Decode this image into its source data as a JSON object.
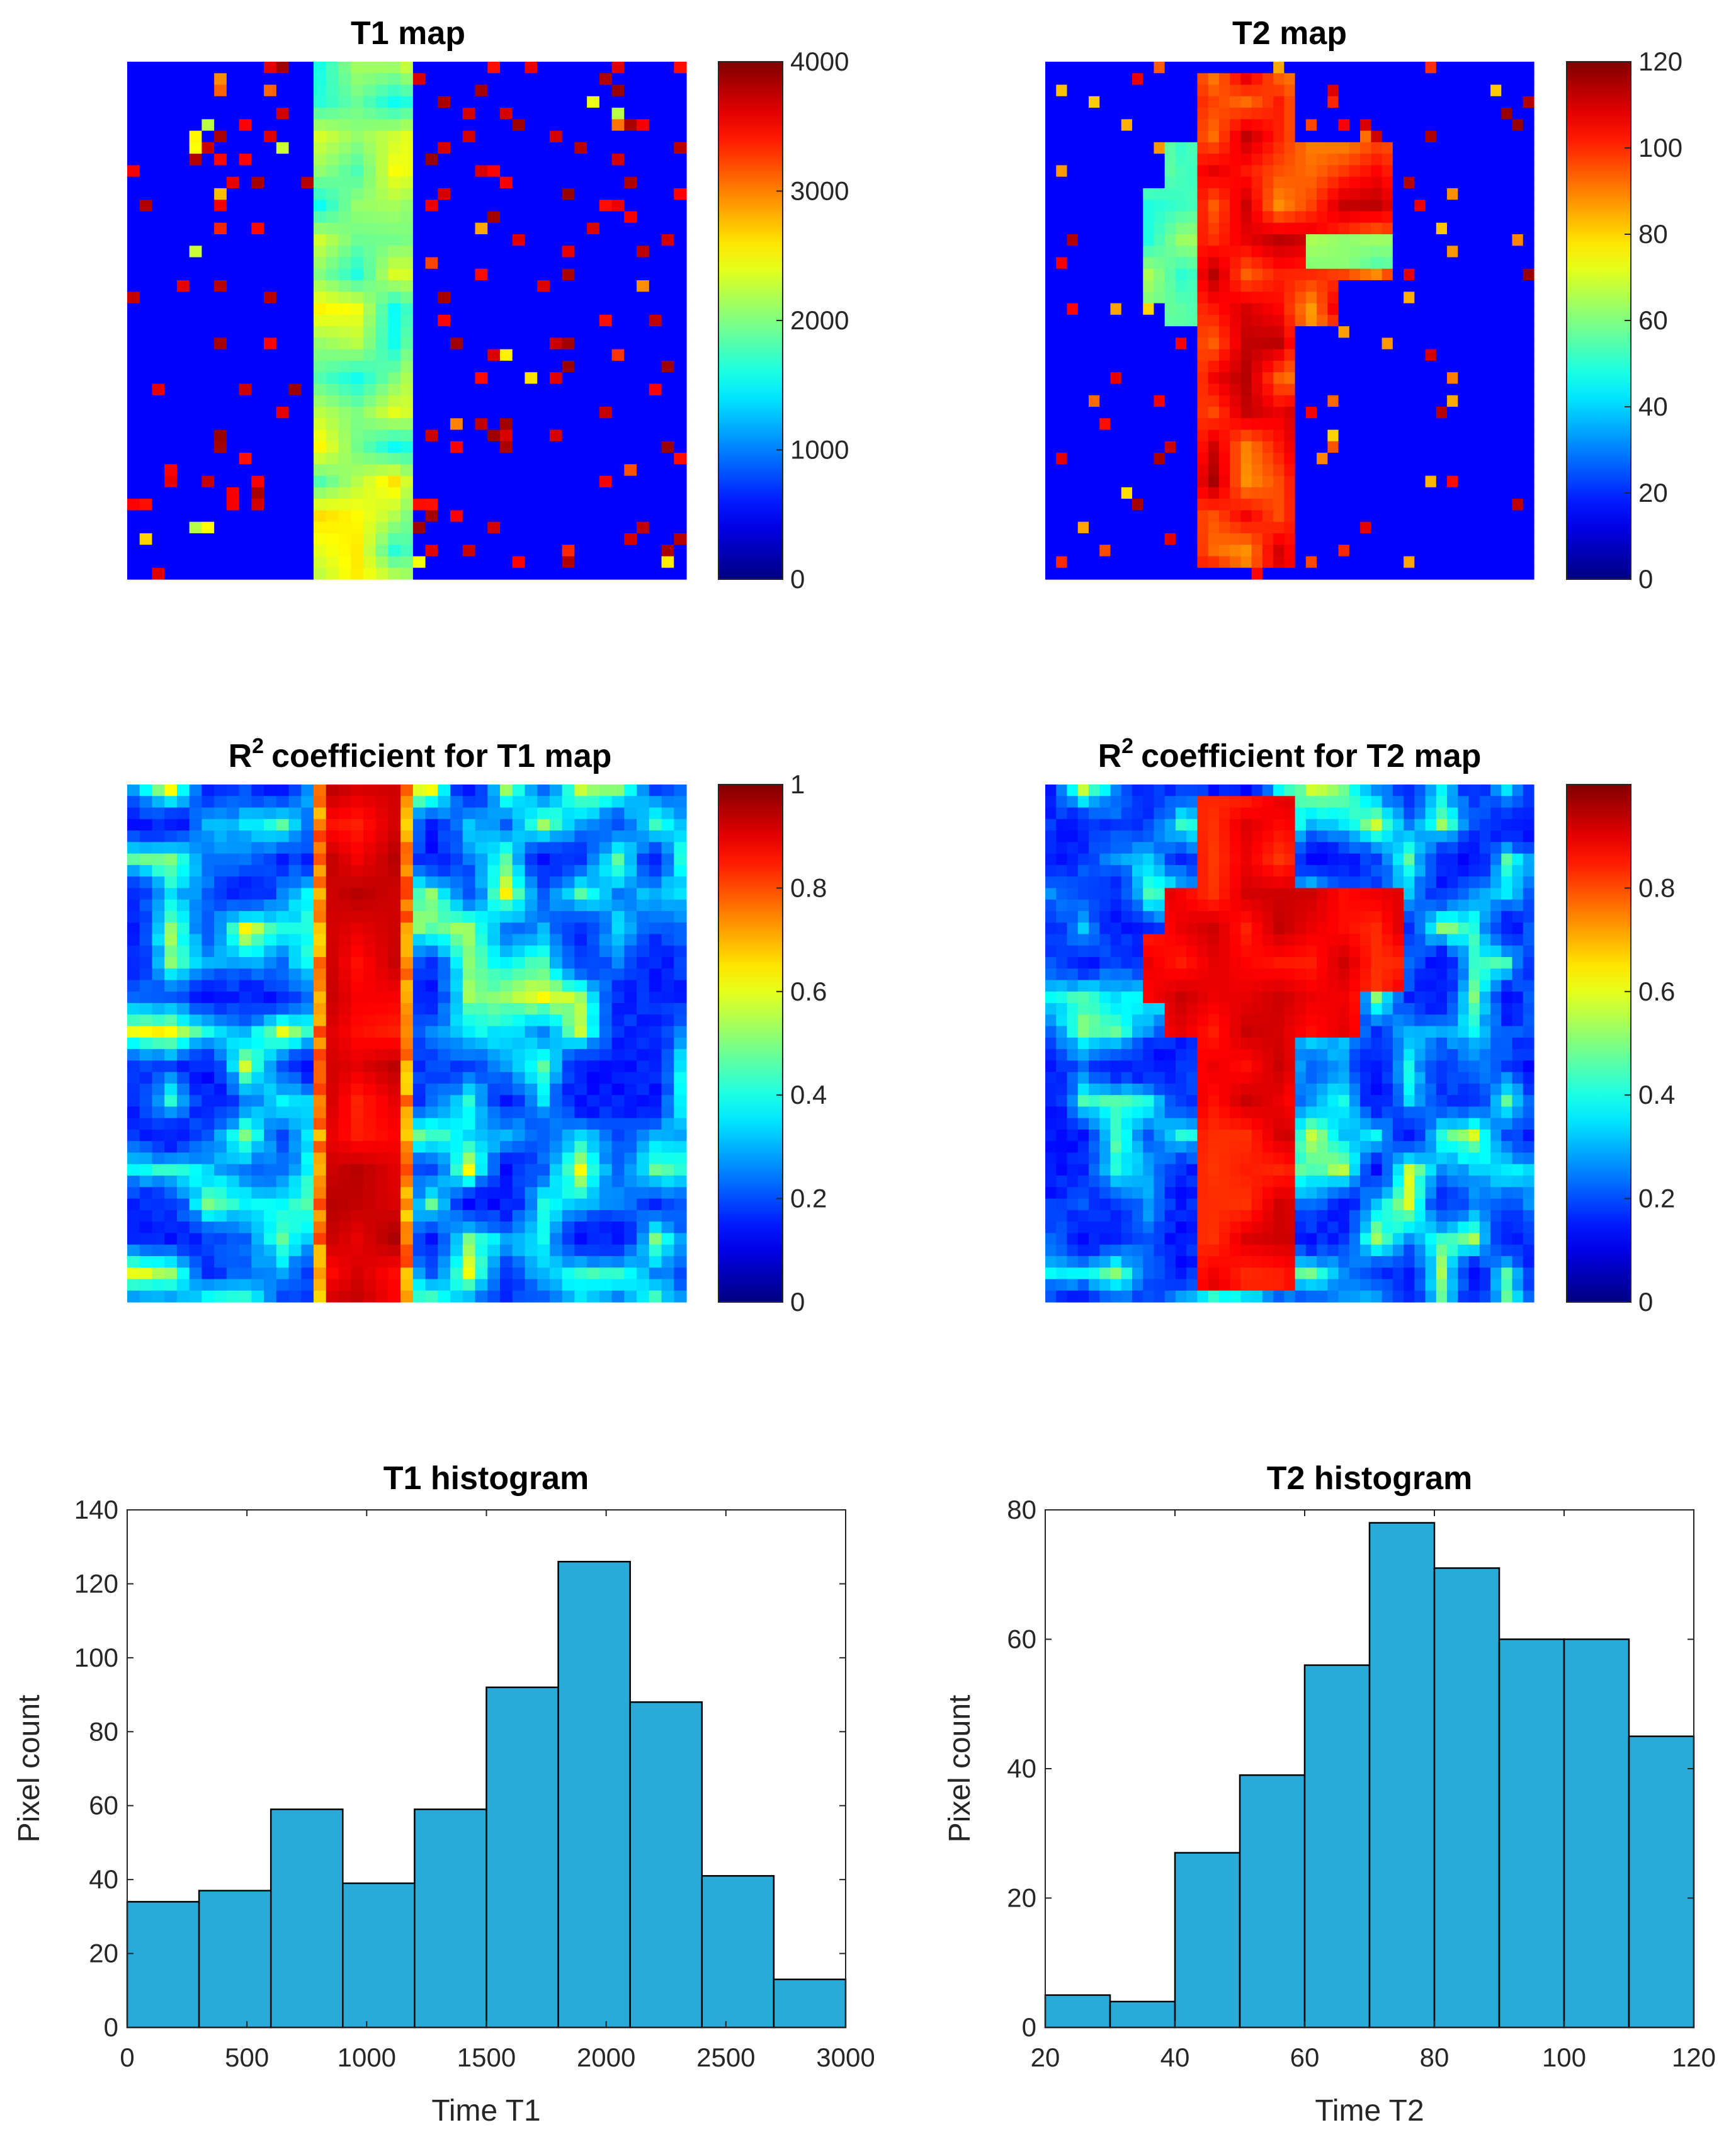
{
  "colors": {
    "bar_fill": "#29abd9",
    "bar_edge": "#000000",
    "axis": "#262626",
    "colormap": "jet"
  },
  "chart_data": [
    {
      "type": "heatmap",
      "id": "t1map",
      "title": "T1 map",
      "colormap": "jet",
      "colorbar": {
        "min": 0,
        "max": 4000,
        "ticks": [
          0,
          1000,
          2000,
          3000,
          4000
        ]
      },
      "grid": [
        45,
        45
      ]
    },
    {
      "type": "heatmap",
      "id": "t2map",
      "title": "T2 map",
      "colormap": "jet",
      "colorbar": {
        "min": 0,
        "max": 120,
        "ticks": [
          0,
          20,
          40,
          60,
          80,
          100,
          120
        ]
      },
      "grid": [
        45,
        45
      ]
    },
    {
      "type": "heatmap",
      "id": "r2t1",
      "title": "coefficient for T1 map",
      "title_prefix": "R",
      "title_sup": "2",
      "colormap": "jet",
      "colorbar": {
        "min": 0,
        "max": 1,
        "ticks": [
          0,
          0.2,
          0.4,
          0.6,
          0.8,
          1
        ]
      },
      "grid": [
        45,
        45
      ]
    },
    {
      "type": "heatmap",
      "id": "r2t2",
      "title": "coefficient for T2 map",
      "title_prefix": "R",
      "title_sup": "2",
      "colormap": "jet",
      "colorbar": {
        "min": 0,
        "max": 1,
        "ticks": [
          0,
          0.2,
          0.4,
          0.6,
          0.8
        ]
      },
      "grid": [
        45,
        45
      ]
    },
    {
      "type": "bar",
      "id": "t1hist",
      "title": "T1 histogram",
      "xlabel": "Time T1",
      "ylabel": "Pixel count",
      "xlim": [
        0,
        3000
      ],
      "ylim": [
        0,
        140
      ],
      "xticks": [
        0,
        500,
        1000,
        1500,
        2000,
        2500,
        3000
      ],
      "yticks": [
        0,
        20,
        40,
        60,
        80,
        100,
        120,
        140
      ],
      "bin_edges": [
        0,
        300,
        600,
        900,
        1200,
        1500,
        1800,
        2100,
        2400,
        2700,
        3000
      ],
      "values": [
        34,
        37,
        59,
        39,
        59,
        92,
        126,
        88,
        41,
        13
      ]
    },
    {
      "type": "bar",
      "id": "t2hist",
      "title": "T2 histogram",
      "xlabel": "Time T2",
      "ylabel": "Pixel count",
      "xlim": [
        20,
        120
      ],
      "ylim": [
        0,
        80
      ],
      "xticks": [
        20,
        40,
        60,
        80,
        100,
        120
      ],
      "yticks": [
        0,
        20,
        40,
        60,
        80
      ],
      "bin_edges": [
        20,
        30,
        40,
        50,
        60,
        70,
        80,
        90,
        100,
        110,
        120
      ],
      "values": [
        5,
        4,
        27,
        39,
        56,
        78,
        71,
        60,
        60,
        45
      ]
    }
  ]
}
